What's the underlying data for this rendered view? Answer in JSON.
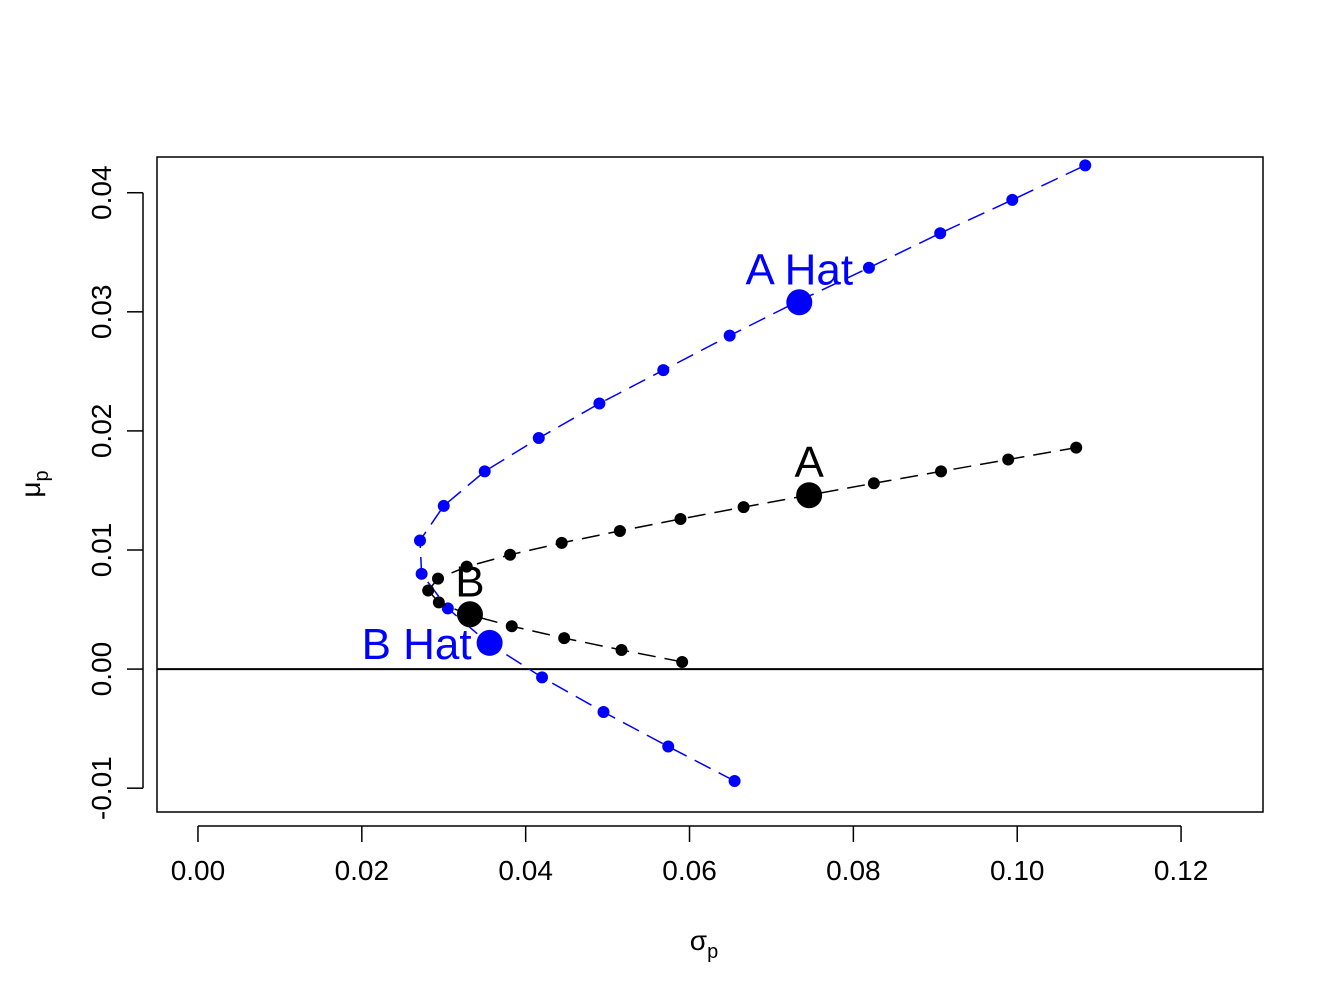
{
  "chart_data": {
    "type": "scatter",
    "title": "",
    "xlabel": "σ",
    "xlabel_sub": "p",
    "ylabel": "μ",
    "ylabel_sub": "p",
    "xlim": [
      -0.005,
      0.13
    ],
    "ylim": [
      -0.012,
      0.043
    ],
    "x_ticks": [
      0.0,
      0.02,
      0.04,
      0.06,
      0.08,
      0.1,
      0.12
    ],
    "x_tick_labels": [
      "0.00",
      "0.02",
      "0.04",
      "0.06",
      "0.08",
      "0.10",
      "0.12"
    ],
    "y_ticks": [
      -0.01,
      0.0,
      0.01,
      0.02,
      0.03,
      0.04
    ],
    "y_tick_labels": [
      "-0.01",
      "0.00",
      "0.01",
      "0.02",
      "0.03",
      "0.04"
    ],
    "hline": 0.0,
    "grid": false,
    "series": [
      {
        "color": "#0000ff",
        "line": "dashed",
        "x": [
          0.0655,
          0.0574,
          0.0495,
          0.042,
          0.0354,
          0.0305,
          0.0273,
          0.0271,
          0.03,
          0.035,
          0.0416,
          0.049,
          0.0568,
          0.0649,
          0.0733,
          0.0819,
          0.0906,
          0.0994,
          0.1083
        ],
        "y": [
          -0.0094,
          -0.0065,
          -0.0036,
          -0.0007,
          0.0022,
          0.0051,
          0.008,
          0.0108,
          0.0137,
          0.0166,
          0.0194,
          0.0223,
          0.0251,
          0.028,
          0.0309,
          0.0337,
          0.0366,
          0.0394,
          0.0423
        ]
      },
      {
        "color": "#000000",
        "line": "dashed",
        "x": [
          0.0591,
          0.0517,
          0.0447,
          0.0383,
          0.0329,
          0.0294,
          0.0281,
          0.0293,
          0.0328,
          0.0381,
          0.0444,
          0.0515,
          0.0589,
          0.0666,
          0.0745,
          0.0825,
          0.0907,
          0.0989,
          0.1072
        ],
        "y": [
          0.0006,
          0.0016,
          0.0026,
          0.0036,
          0.0046,
          0.0056,
          0.0066,
          0.0076,
          0.0086,
          0.0096,
          0.0106,
          0.0116,
          0.0126,
          0.0136,
          0.0146,
          0.0156,
          0.0166,
          0.0176,
          0.0186
        ]
      }
    ],
    "highlights": [
      {
        "label": "A Hat",
        "x": 0.0734,
        "y": 0.0308,
        "color": "#0000ff",
        "label_side": "left-above"
      },
      {
        "label": "B Hat",
        "x": 0.0356,
        "y": 0.0022,
        "color": "#0000ff",
        "label_side": "left"
      },
      {
        "label": "A",
        "x": 0.0746,
        "y": 0.0146,
        "color": "#000000",
        "label_side": "above"
      },
      {
        "label": "B",
        "x": 0.0332,
        "y": 0.0046,
        "color": "#000000",
        "label_side": "above"
      }
    ]
  }
}
